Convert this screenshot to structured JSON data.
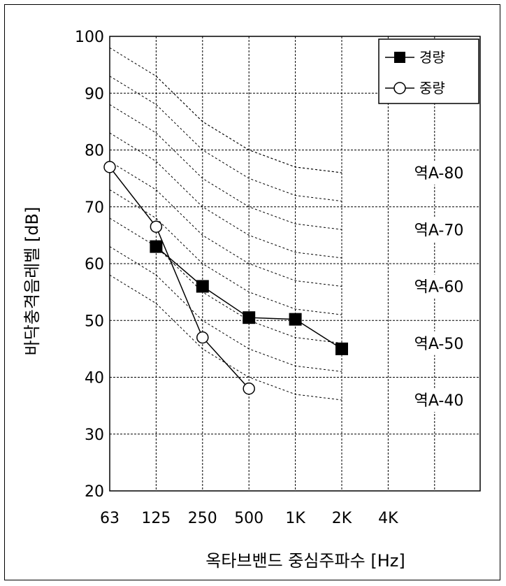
{
  "chart_data": {
    "type": "line",
    "title": "",
    "xlabel": "옥타브밴드 중심주파수 [Hz]",
    "ylabel": "바닥충격음레벨 [dB]",
    "categories": [
      "63",
      "125",
      "250",
      "500",
      "1K",
      "2K",
      "4K"
    ],
    "ylim": [
      20,
      100
    ],
    "yticks": [
      20,
      30,
      40,
      50,
      60,
      70,
      80,
      90,
      100
    ],
    "grid": true,
    "legend_position": "top-right",
    "series": [
      {
        "name": "경량",
        "marker": "filled-square",
        "color": "#000000",
        "values": [
          null,
          63,
          56,
          50.5,
          50.2,
          45,
          null
        ]
      },
      {
        "name": "중량",
        "marker": "open-circle",
        "color": "#000000",
        "values": [
          77,
          66.5,
          47,
          38,
          null,
          null,
          null
        ]
      }
    ],
    "reference_curves": {
      "style": "dotted",
      "labeled": [
        {
          "label": "역A-80",
          "values": [
            98,
            93,
            85,
            80,
            77,
            76
          ]
        },
        {
          "label": "역A-70",
          "values": [
            88,
            83,
            75,
            70,
            67,
            66
          ]
        },
        {
          "label": "역A-60",
          "values": [
            78,
            73,
            65,
            60,
            57,
            56
          ]
        },
        {
          "label": "역A-50",
          "values": [
            68,
            63,
            55,
            50,
            47,
            46
          ]
        },
        {
          "label": "역A-40",
          "values": [
            58,
            53,
            45,
            40,
            37,
            36
          ]
        }
      ],
      "intermediate": [
        [
          93,
          88,
          80,
          75,
          72,
          71
        ],
        [
          83,
          78,
          70,
          65,
          62,
          61
        ],
        [
          73,
          68,
          60,
          55,
          52,
          51
        ],
        [
          63,
          58,
          50,
          45,
          42,
          41
        ],
        [
          null,
          93,
          85,
          80,
          77,
          76
        ]
      ]
    }
  }
}
